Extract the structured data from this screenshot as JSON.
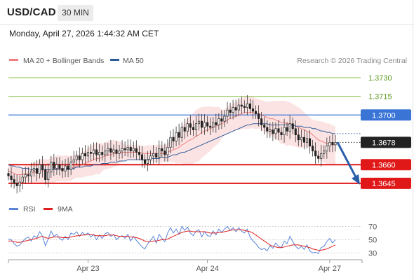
{
  "header": {
    "symbol": "USD/CAD",
    "timeframe": "30 MIN",
    "datetime": "Monday, April 27, 2026 1:44:32 AM CET"
  },
  "legend": {
    "ma20_label": "MA 20 + Bollinger Bands",
    "ma50_label": "MA 50",
    "ma20_color": "#f08080",
    "ma50_color": "#2e5c9a",
    "credit": "Research © 2026 Trading Central"
  },
  "rsi_legend": {
    "rsi_label": "RSI",
    "ma_label": "9MA",
    "rsi_color": "#5b86d8",
    "ma_color": "#e02020"
  },
  "chart_data": [
    {
      "type": "candlestick",
      "title": "",
      "xlabel": "",
      "ylabel": "",
      "ylim": [
        1.3632,
        1.3739
      ],
      "x_tick_labels": [
        "Apr 23",
        "Apr 24",
        "Apr 27"
      ],
      "levels": [
        {
          "label": "1.3730",
          "value": 1.373,
          "kind": "resistance",
          "color": "#8dc34f"
        },
        {
          "label": "1.3715",
          "value": 1.3715,
          "kind": "resistance",
          "color": "#8dc34f"
        },
        {
          "label": "1.3700",
          "value": 1.37,
          "kind": "pivot",
          "color": "#3a75d6"
        },
        {
          "label": "1.3678",
          "value": 1.3678,
          "kind": "last",
          "color": "#222222"
        },
        {
          "label": "1.3660",
          "value": 1.366,
          "kind": "support",
          "color": "#e01818"
        },
        {
          "label": "1.3645",
          "value": 1.3645,
          "kind": "support",
          "color": "#e01818"
        }
      ],
      "close_series": [
        1.3651,
        1.3648,
        1.3645,
        1.3643,
        1.3646,
        1.365,
        1.3652,
        1.3651,
        1.3655,
        1.3657,
        1.3653,
        1.366,
        1.3656,
        1.3648,
        1.3654,
        1.3662,
        1.3657,
        1.366,
        1.3657,
        1.3655,
        1.3659,
        1.3656,
        1.3662,
        1.3664,
        1.3667,
        1.3664,
        1.3669,
        1.3667,
        1.367,
        1.3669,
        1.3672,
        1.3668,
        1.367,
        1.3668,
        1.3671,
        1.3673,
        1.367,
        1.3672,
        1.3669,
        1.3671,
        1.3673,
        1.3672,
        1.3674,
        1.3671,
        1.3673,
        1.367,
        1.3668,
        1.3664,
        1.3661,
        1.3664,
        1.3667,
        1.3669,
        1.3666,
        1.3673,
        1.3671,
        1.3668,
        1.3674,
        1.3682,
        1.3679,
        1.3686,
        1.3682,
        1.369,
        1.3687,
        1.3693,
        1.369,
        1.3688,
        1.3693,
        1.3695,
        1.369,
        1.3694,
        1.3691,
        1.369,
        1.3694,
        1.3692,
        1.3697,
        1.3695,
        1.3699,
        1.3704,
        1.3702,
        1.3706,
        1.3704,
        1.3708,
        1.3707,
        1.3706,
        1.3709,
        1.3705,
        1.3703,
        1.3701,
        1.3697,
        1.3692,
        1.369,
        1.3687,
        1.3688,
        1.3685,
        1.3689,
        1.3686,
        1.3684,
        1.369,
        1.3687,
        1.3693,
        1.3689,
        1.3684,
        1.368,
        1.3682,
        1.3678,
        1.3681,
        1.3675,
        1.3671,
        1.3667,
        1.3665,
        1.3669,
        1.3671,
        1.3675,
        1.3678,
        1.3676,
        1.3678
      ],
      "series": [
        {
          "name": "MA 20 + Bollinger Bands",
          "values": [
            1.3655,
            1.3654,
            1.3653,
            1.3652,
            1.3652,
            1.3652,
            1.3653,
            1.3653,
            1.3653,
            1.3654,
            1.3654,
            1.3655,
            1.3655,
            1.3655,
            1.3655,
            1.3656,
            1.3656,
            1.3657,
            1.3657,
            1.3657,
            1.3657,
            1.3657,
            1.3657,
            1.3658,
            1.3659,
            1.3659,
            1.366,
            1.3661,
            1.3662,
            1.3663,
            1.3664,
            1.3665,
            1.3665,
            1.3666,
            1.3667,
            1.3668,
            1.3668,
            1.3669,
            1.3669,
            1.367,
            1.367,
            1.367,
            1.367,
            1.367,
            1.367,
            1.367,
            1.367,
            1.3669,
            1.3669,
            1.3669,
            1.3669,
            1.3669,
            1.3669,
            1.3669,
            1.3669,
            1.3669,
            1.367,
            1.3671,
            1.3672,
            1.3673,
            1.3674,
            1.3676,
            1.3677,
            1.3679,
            1.368,
            1.3681,
            1.3683,
            1.3684,
            1.3686,
            1.3687,
            1.3688,
            1.3689,
            1.369,
            1.3691,
            1.3692,
            1.3693,
            1.3694,
            1.3696,
            1.3697,
            1.3698,
            1.3699,
            1.37,
            1.3701,
            1.3702,
            1.3702,
            1.3702,
            1.3702,
            1.3701,
            1.3701,
            1.37,
            1.3699,
            1.3698,
            1.3697,
            1.3697,
            1.3696,
            1.3695,
            1.3694,
            1.3694,
            1.3693,
            1.3693,
            1.3692,
            1.3691,
            1.369,
            1.3689,
            1.3688,
            1.3687,
            1.3686,
            1.3684,
            1.3682,
            1.368,
            1.3679,
            1.3678,
            1.3677,
            1.3677,
            1.3676,
            1.3676
          ]
        },
        {
          "name": "MA 50",
          "values": [
            1.366,
            1.3659,
            1.3659,
            1.3658,
            1.3658,
            1.3657,
            1.3657,
            1.3657,
            1.3656,
            1.3656,
            1.3656,
            1.3656,
            1.3656,
            1.3656,
            1.3656,
            1.3656,
            1.3656,
            1.3656,
            1.3656,
            1.3656,
            1.3657,
            1.3657,
            1.3657,
            1.3657,
            1.3658,
            1.3658,
            1.3658,
            1.3659,
            1.3659,
            1.3659,
            1.366,
            1.366,
            1.366,
            1.3661,
            1.3661,
            1.3661,
            1.3662,
            1.3662,
            1.3662,
            1.3663,
            1.3663,
            1.3663,
            1.3664,
            1.3664,
            1.3664,
            1.3664,
            1.3664,
            1.3664,
            1.3664,
            1.3664,
            1.3665,
            1.3665,
            1.3665,
            1.3665,
            1.3666,
            1.3666,
            1.3666,
            1.3667,
            1.3668,
            1.3668,
            1.3669,
            1.367,
            1.367,
            1.3671,
            1.3672,
            1.3673,
            1.3674,
            1.3675,
            1.3676,
            1.3677,
            1.3678,
            1.3679,
            1.368,
            1.3681,
            1.3682,
            1.3683,
            1.3684,
            1.3685,
            1.3686,
            1.3687,
            1.3688,
            1.3689,
            1.369,
            1.3691,
            1.3692,
            1.3692,
            1.3693,
            1.3693,
            1.3693,
            1.3693,
            1.3693,
            1.3693,
            1.3692,
            1.3692,
            1.3692,
            1.3692,
            1.3692,
            1.3692,
            1.3692,
            1.3692,
            1.3692,
            1.3691,
            1.3691,
            1.3691,
            1.369,
            1.369,
            1.369,
            1.3689,
            1.3689,
            1.3688,
            1.3687,
            1.3687,
            1.3686,
            1.3686,
            1.3685,
            1.3685
          ]
        }
      ],
      "projection": {
        "from": 1.3678,
        "to": 1.3645
      }
    },
    {
      "type": "line",
      "title": "",
      "xlabel": "",
      "ylabel": "",
      "ylim": [
        25,
        80
      ],
      "y_tick_labels": [
        "70",
        "50",
        "30"
      ],
      "series": [
        {
          "name": "RSI",
          "values": [
            51,
            50,
            44,
            40,
            42,
            47,
            52,
            54,
            48,
            56,
            53,
            62,
            55,
            41,
            51,
            63,
            55,
            58,
            52,
            49,
            55,
            50,
            60,
            58,
            62,
            55,
            61,
            57,
            60,
            54,
            58,
            50,
            57,
            52,
            59,
            61,
            55,
            58,
            50,
            54,
            56,
            52,
            58,
            48,
            55,
            49,
            44,
            39,
            36,
            44,
            49,
            55,
            45,
            58,
            52,
            47,
            60,
            68,
            60,
            66,
            58,
            70,
            64,
            69,
            60,
            56,
            63,
            65,
            54,
            62,
            56,
            55,
            63,
            57,
            66,
            61,
            66,
            70,
            64,
            68,
            62,
            68,
            63,
            60,
            66,
            54,
            48,
            44,
            38,
            35,
            37,
            33,
            41,
            37,
            45,
            40,
            38,
            48,
            44,
            55,
            47,
            40,
            36,
            40,
            35,
            42,
            33,
            30,
            31,
            29,
            38,
            40,
            47,
            52,
            45,
            50
          ]
        },
        {
          "name": "9MA",
          "values": [
            48,
            48,
            47,
            46,
            46,
            47,
            48,
            49,
            50,
            51,
            52,
            54,
            55,
            53,
            52,
            53,
            54,
            54,
            54,
            53,
            53,
            53,
            54,
            55,
            56,
            56,
            57,
            57,
            58,
            58,
            57,
            56,
            56,
            56,
            56,
            57,
            57,
            57,
            56,
            55,
            55,
            55,
            55,
            54,
            54,
            53,
            52,
            50,
            48,
            47,
            47,
            48,
            48,
            49,
            50,
            50,
            51,
            53,
            55,
            57,
            59,
            61,
            62,
            63,
            63,
            62,
            62,
            62,
            62,
            62,
            61,
            60,
            60,
            60,
            61,
            61,
            62,
            63,
            64,
            65,
            65,
            65,
            65,
            64,
            63,
            62,
            60,
            57,
            54,
            51,
            48,
            45,
            42,
            40,
            39,
            38,
            38,
            39,
            40,
            41,
            42,
            42,
            42,
            41,
            40,
            39,
            38,
            36,
            35,
            34,
            34,
            35,
            36,
            38,
            40,
            42
          ]
        }
      ]
    }
  ]
}
